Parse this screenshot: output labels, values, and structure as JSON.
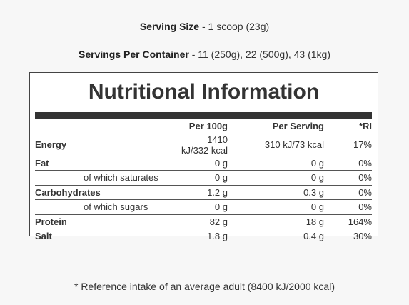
{
  "serving_size": {
    "label": "Serving Size",
    "value": "- 1 scoop (23g)"
  },
  "servings_per_container": {
    "label": "Servings Per Container",
    "value": "- 11 (250g), 22 (500g), 43 (1kg)"
  },
  "panel": {
    "title": "Nutritional Information",
    "columns": [
      "Per 100g",
      "Per Serving",
      "*RI"
    ],
    "rows": [
      {
        "cells": [
          "Energy",
          "1410 kJ/332 kcal",
          "310 kJ/73 kcal",
          "17%"
        ]
      },
      {
        "cells": [
          "Fat",
          "0 g",
          "0 g",
          "0%"
        ],
        "sub_rows": [
          [
            "of which saturates",
            "0 g",
            "0 g",
            "0%"
          ]
        ]
      },
      {
        "cells": [
          "Carbohydrates",
          "1.2 g",
          "0.3 g",
          "0%"
        ],
        "sub_rows": [
          [
            "of which sugars",
            "0 g",
            "0 g",
            "0%"
          ]
        ]
      },
      {
        "cells": [
          "Protein",
          "82 g",
          "18 g",
          "164%"
        ]
      },
      {
        "cells": [
          "Salt",
          "1.8 g",
          "0.4 g",
          "30%"
        ]
      }
    ]
  },
  "footnote": "* Reference intake of an average adult (8400 kJ/2000 kcal)"
}
